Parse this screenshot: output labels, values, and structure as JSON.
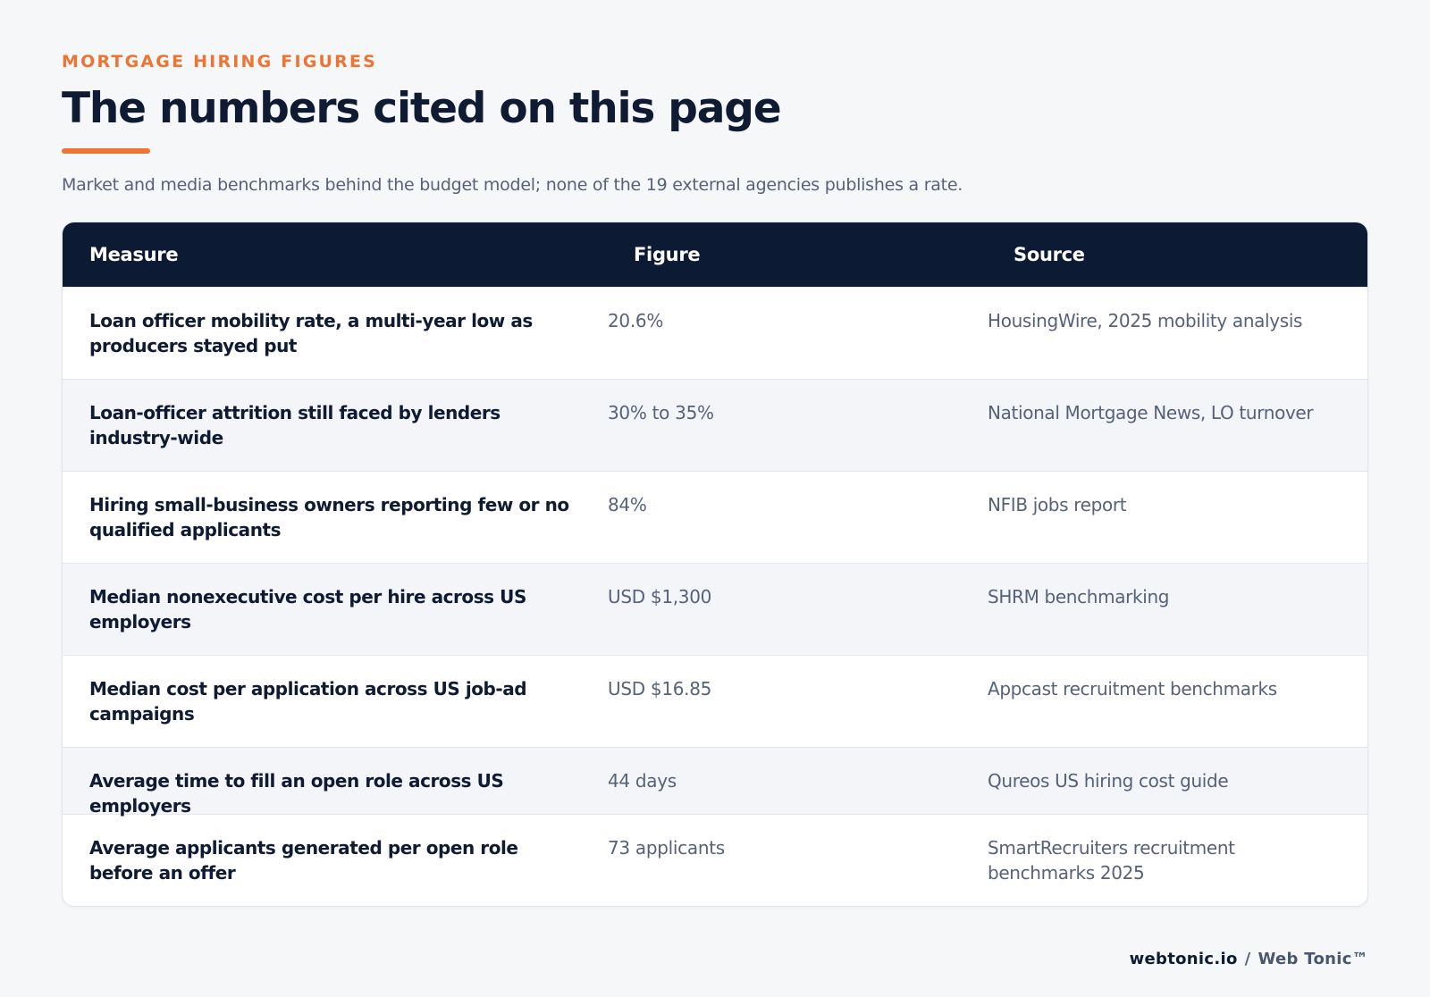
{
  "header": {
    "eyebrow": "MORTGAGE HIRING FIGURES",
    "title": "The numbers cited on this page",
    "subtitle": "Market and media benchmarks behind the budget model; none of the 19 external agencies publishes a rate."
  },
  "table": {
    "columns": [
      "Measure",
      "Figure",
      "Source"
    ],
    "rows": [
      {
        "measure": "Loan officer mobility rate, a multi-year low as producers stayed put",
        "figure": "20.6%",
        "source": "HousingWire, 2025 mobility analysis"
      },
      {
        "measure": "Loan-officer attrition still faced by lenders industry-wide",
        "figure": "30% to 35%",
        "source": "National Mortgage News, LO turnover"
      },
      {
        "measure": "Hiring small-business owners reporting few or no qualified applicants",
        "figure": "84%",
        "source": "NFIB jobs report"
      },
      {
        "measure": "Median nonexecutive cost per hire across US employers",
        "figure": "USD $1,300",
        "source": "SHRM benchmarking"
      },
      {
        "measure": "Median cost per application across US job-ad campaigns",
        "figure": "USD $16.85",
        "source": "Appcast recruitment benchmarks"
      },
      {
        "measure": "Average time to fill an open role across US employers",
        "figure": "44 days",
        "source": "Qureos US hiring cost guide"
      },
      {
        "measure": "Average applicants generated per open role before an offer",
        "figure": "73 applicants",
        "source": "SmartRecruiters recruitment benchmarks 2025"
      }
    ]
  },
  "footer": {
    "domain": "webtonic.io",
    "separator": "/",
    "brand": "Web Tonic™"
  },
  "colors": {
    "accent": "#ee7433",
    "header_bg": "#0c1a33",
    "text_dark": "#0f1b33",
    "text_muted": "#56617a",
    "row_alt": "#f3f5f8"
  }
}
